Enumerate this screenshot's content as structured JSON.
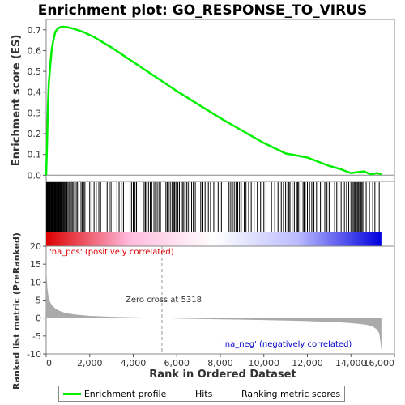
{
  "chart_data": {
    "type": "line",
    "title": "Enrichment plot: GO_RESPONSE_TO_VIRUS",
    "es_panel": {
      "ylabel": "Enrichment score (ES)",
      "ylim": [
        -0.03,
        0.75
      ],
      "yticks": [
        "0.0",
        "0.1",
        "0.2",
        "0.3",
        "0.4",
        "0.5",
        "0.6",
        "0.7"
      ],
      "ytick_values": [
        0,
        0.1,
        0.2,
        0.3,
        0.4,
        0.5,
        0.6,
        0.7
      ],
      "series": [
        {
          "name": "Enrichment profile",
          "color": "#00ee00",
          "x": [
            0,
            40,
            80,
            120,
            180,
            250,
            330,
            420,
            520,
            650,
            800,
            1000,
            1300,
            1700,
            2200,
            3000,
            4000,
            5000,
            6000,
            7000,
            8000,
            9000,
            10000,
            11000,
            12000,
            12500,
            13000,
            13500,
            14000,
            14300,
            14600,
            14900,
            15200,
            15400
          ],
          "y": [
            0.0,
            0.15,
            0.33,
            0.44,
            0.52,
            0.6,
            0.65,
            0.69,
            0.705,
            0.713,
            0.715,
            0.712,
            0.704,
            0.69,
            0.665,
            0.615,
            0.545,
            0.475,
            0.405,
            0.34,
            0.275,
            0.215,
            0.155,
            0.105,
            0.085,
            0.065,
            0.045,
            0.03,
            0.01,
            0.015,
            0.018,
            0.005,
            0.01,
            0.005
          ]
        }
      ]
    },
    "hits_panel": {
      "hit_positions": [
        20,
        45,
        70,
        95,
        120,
        145,
        170,
        200,
        230,
        260,
        290,
        320,
        350,
        380,
        410,
        440,
        470,
        500,
        530,
        560,
        590,
        620,
        650,
        680,
        710,
        740,
        780,
        820,
        860,
        900,
        950,
        1000,
        1050,
        1100,
        1150,
        1200,
        1260,
        1320,
        1380,
        1440,
        1600,
        1660,
        1720,
        1780,
        2000,
        2100,
        2200,
        2300,
        2420,
        2500,
        2800,
        2900,
        2980,
        3250,
        3350,
        3450,
        3550,
        3850,
        3920,
        4000,
        4080,
        4150,
        4500,
        4560,
        4620,
        4700,
        4780,
        4850,
        4950,
        5020,
        5100,
        5180,
        5250,
        5500,
        5560,
        5620,
        5700,
        5780,
        5850,
        5900,
        5960,
        6050,
        6120,
        6200,
        6260,
        6320,
        6380,
        6450,
        6520,
        6600,
        6680,
        6760,
        6850,
        7100,
        7200,
        7300,
        7450,
        7550,
        7700,
        7900,
        8050,
        8400,
        8480,
        8560,
        8640,
        8720,
        8800,
        8880,
        8960,
        9100,
        9180,
        9300,
        9420,
        9550,
        9700,
        9850,
        10000,
        10100,
        10350,
        10500,
        10650,
        10800,
        10900,
        11000,
        11100,
        11150,
        11200,
        11300,
        11400,
        11500,
        11550,
        11600,
        11700,
        11800,
        11850,
        11900,
        12000,
        12100,
        12200,
        12300,
        12420,
        12600,
        12800,
        12900,
        13000,
        13250,
        13350,
        13450,
        13550,
        13700,
        13800,
        13900,
        14000,
        14050,
        14100,
        14150,
        14200,
        14250,
        14300,
        14350,
        14400,
        14450,
        14500,
        14550,
        14700,
        14850,
        15000,
        15100,
        15200,
        15300
      ],
      "bar_x_range": [
        0,
        15400
      ],
      "gradient_stops": [
        "#dd0000",
        "#ffbbdd",
        "#ffffff",
        "#bbbbff",
        "#0000dd"
      ]
    },
    "metric_panel": {
      "ylabel": "Ranked list metric (PreRanked)",
      "xlabel": "Rank in Ordered Dataset",
      "ylim": [
        -10,
        20
      ],
      "yticks": [
        "-10",
        "-5",
        "0",
        "5",
        "10",
        "15",
        "20"
      ],
      "ytick_values": [
        -10,
        -5,
        0,
        5,
        10,
        15,
        20
      ],
      "xticks": [
        "0",
        "2,000",
        "4,000",
        "6,000",
        "8,000",
        "10,000",
        "12,000",
        "14,000",
        "16,000"
      ],
      "xtick_values": [
        0,
        2000,
        4000,
        6000,
        8000,
        10000,
        12000,
        14000,
        16000
      ],
      "xlim": [
        0,
        16000
      ],
      "zero_cross": 5318,
      "series": [
        {
          "name": "Ranking metric scores",
          "color": "#aaaaaa",
          "x": [
            0,
            20,
            60,
            120,
            200,
            300,
            450,
            650,
            900,
            1300,
            2000,
            3000,
            4000,
            5000,
            5318,
            6000,
            7000,
            8000,
            9000,
            10000,
            11000,
            12000,
            13000,
            13500,
            14000,
            14500,
            14800,
            15000,
            15200,
            15300,
            15350,
            15400
          ],
          "y": [
            19.5,
            12,
            8,
            5.5,
            4.2,
            3.3,
            2.5,
            1.9,
            1.4,
            1.0,
            0.6,
            0.35,
            0.2,
            0.08,
            0,
            -0.12,
            -0.25,
            -0.35,
            -0.45,
            -0.55,
            -0.7,
            -0.85,
            -1.05,
            -1.2,
            -1.4,
            -1.7,
            -2.0,
            -2.4,
            -3.2,
            -4.3,
            -6.5,
            -9
          ]
        }
      ]
    },
    "annotations": {
      "pos": "'na_pos' (positively correlated)",
      "neg": "'na_neg' (negatively correlated)",
      "zero_cross": "Zero cross at 5318"
    },
    "legend": {
      "position": "bottom",
      "items": [
        {
          "label": "Enrichment profile",
          "color": "#00ee00"
        },
        {
          "label": "Hits",
          "color": "#000000"
        },
        {
          "label": "Ranking metric scores",
          "color": "#cccccc"
        }
      ]
    }
  }
}
